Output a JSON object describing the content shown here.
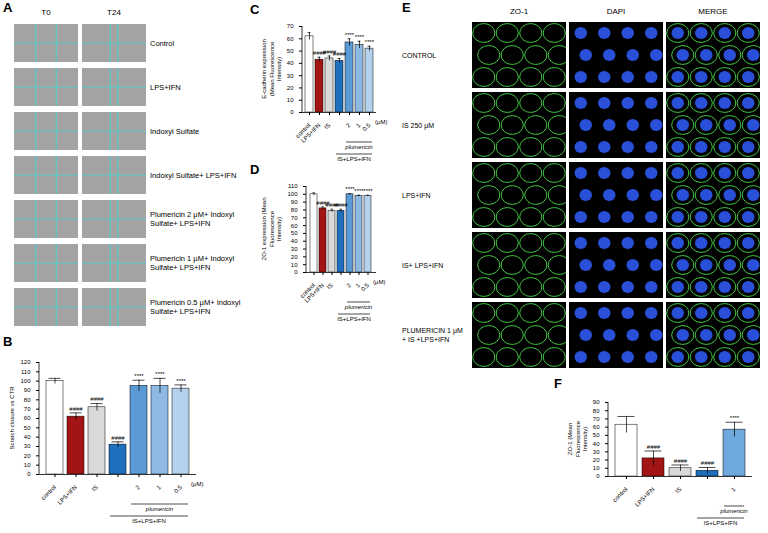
{
  "image_panels": [
    {
      "panel": "A",
      "columns": [
        "T0",
        "T24"
      ],
      "rows": [
        "Control",
        "LPS+IFN",
        "Indoxyl Sulfate",
        "Indoxyl Sulfate+ LPS+IFN",
        "Plumericin 2 μM+ Indoxyl Sulfate+ LPS+IFN",
        "Plumericin 1 μM+ Indoxyl Sulfate+ LPS+IFN",
        "Plumericin 0.5 μM+ Indoxyl Sulfate+ LPS+IFN"
      ]
    },
    {
      "panel": "E",
      "columns": [
        "ZO-1",
        "DAPI",
        "MERGE"
      ],
      "rows": [
        "CONTROL",
        "IS 250 μM",
        "LPS+IFN",
        "IS+ LPS+IFN",
        "PLUMERICIN 1 μM + IS +LPS+IFN"
      ]
    }
  ],
  "chart_data": [
    {
      "panel": "B",
      "type": "bar",
      "ylabel": "Scratch closure vs CTR",
      "categories": [
        "control",
        "LPS+IFN",
        "IS",
        null,
        "2",
        "1",
        "0.5"
      ],
      "values": [
        100,
        62,
        72,
        32,
        95,
        95,
        92
      ],
      "errors": [
        3,
        4,
        4,
        3,
        6,
        8,
        4
      ],
      "annotations": [
        null,
        "####",
        "####",
        "####",
        "****",
        "****",
        "****"
      ],
      "colors": [
        "#ffffff",
        "#a31515",
        "#d9d9d9",
        "#1f6fbf",
        "#5b9bd5",
        "#8db9e3",
        "#b4d2ee"
      ],
      "ylim": [
        0,
        120
      ],
      "yticks": [
        0,
        10,
        20,
        30,
        40,
        50,
        60,
        70,
        80,
        90,
        100,
        110,
        120
      ],
      "group_labels": [
        {
          "text": "plumericin",
          "from": 4,
          "to": 6
        },
        {
          "text": "IS+LPS+IFN",
          "from": 3,
          "to": 6
        }
      ],
      "unit_label": "(μM)"
    },
    {
      "panel": "C",
      "type": "bar",
      "ylabel": "E-cadherin expression (Mean Fluorescence Intensity)",
      "categories": [
        "control",
        "LPS+IFN",
        "IS",
        null,
        "2",
        "1",
        "0.5"
      ],
      "values": [
        62,
        43,
        44,
        42,
        57,
        55,
        52
      ],
      "errors": [
        3,
        2,
        2,
        2,
        3,
        3,
        2
      ],
      "annotations": [
        null,
        "####",
        "####",
        "####",
        "****",
        "****",
        "****"
      ],
      "colors": [
        "#ffffff",
        "#a31515",
        "#d9d9d9",
        "#1f6fbf",
        "#5b9bd5",
        "#8db9e3",
        "#b4d2ee"
      ],
      "ylim": [
        0,
        70
      ],
      "yticks": [
        0,
        10,
        20,
        30,
        40,
        50,
        60,
        70
      ],
      "group_labels": [
        {
          "text": "plumericin",
          "from": 4,
          "to": 6
        },
        {
          "text": "IS+LPS+IFN",
          "from": 3,
          "to": 6
        }
      ],
      "unit_label": "(μM)"
    },
    {
      "panel": "D",
      "type": "bar",
      "ylabel": "ZO-1 expression (Mean Fluorescence Intensity)",
      "categories": [
        "control",
        "LPS+IFN",
        "IS",
        null,
        "2",
        "1",
        "0.5"
      ],
      "values": [
        100,
        82,
        79,
        79,
        100,
        98,
        98
      ],
      "errors": [
        2,
        2,
        2,
        2,
        1,
        1,
        1
      ],
      "annotations": [
        null,
        "####",
        "####",
        "####",
        "****",
        "****",
        "****"
      ],
      "colors": [
        "#ffffff",
        "#a31515",
        "#d9d9d9",
        "#1f6fbf",
        "#5b9bd5",
        "#8db9e3",
        "#b4d2ee"
      ],
      "ylim": [
        0,
        110
      ],
      "yticks": [
        0,
        10,
        20,
        30,
        40,
        50,
        60,
        70,
        80,
        90,
        100,
        110
      ],
      "group_labels": [
        {
          "text": "plumericin",
          "from": 4,
          "to": 6
        },
        {
          "text": "IS+LPS+IFN",
          "from": 3,
          "to": 6
        }
      ],
      "unit_label": "(μM)"
    },
    {
      "panel": "F",
      "type": "bar",
      "ylabel": "ZO-1 (Mean Fluorescence Intensity)",
      "categories": [
        "control",
        "LPS+IFN",
        "IS",
        null,
        "1"
      ],
      "values": [
        63,
        22,
        10,
        7,
        57
      ],
      "errors": [
        10,
        9,
        4,
        4,
        9
      ],
      "annotations": [
        null,
        "####",
        "####",
        "####",
        "****"
      ],
      "colors": [
        "#ffffff",
        "#a31515",
        "#d9d9d9",
        "#1f6fbf",
        "#6fa8dc"
      ],
      "ylim": [
        0,
        90
      ],
      "yticks": [
        0,
        10,
        20,
        30,
        40,
        50,
        60,
        70,
        80,
        90
      ],
      "group_labels": [
        {
          "text": "plumericin",
          "from": 4,
          "to": 4
        },
        {
          "text": "IS+LPS+IFN",
          "from": 3,
          "to": 4
        }
      ]
    }
  ]
}
